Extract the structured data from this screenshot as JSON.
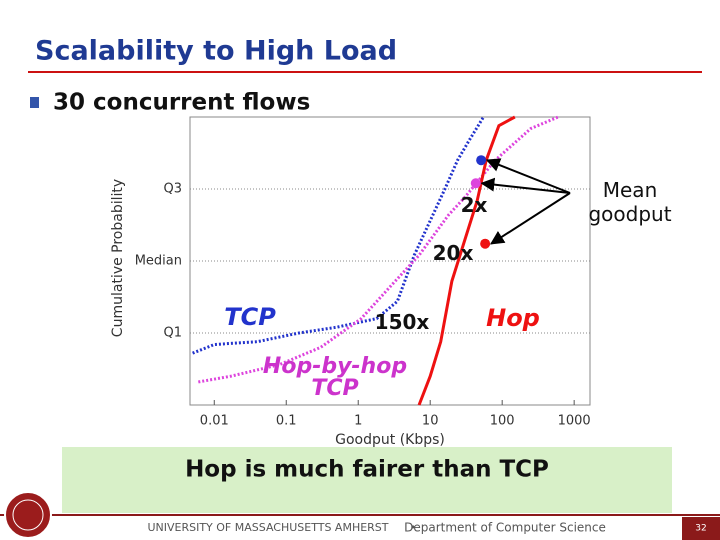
{
  "slide_title": "Scalability to High Load",
  "bullet": "30 concurrent flows",
  "conclusion": "Hop is much fairer than TCP",
  "footer": {
    "university": "UNIVERSITY OF MASSACHUSETTS AMHERST",
    "department": "Department of Computer Science"
  },
  "page_number": "32",
  "chart_data": {
    "type": "line",
    "xlabel": "Goodput (Kbps)",
    "ylabel": "Cumulative Probability",
    "xscale": "log",
    "xlim": [
      0.0046,
      1660
    ],
    "ylim": [
      0,
      1
    ],
    "xticks": [
      0.01,
      0.1,
      1,
      10,
      100,
      1000
    ],
    "yticks": [
      {
        "value": 0.25,
        "label": "Q1"
      },
      {
        "value": 0.5,
        "label": "Median"
      },
      {
        "value": 0.75,
        "label": "Q3"
      }
    ],
    "grid": true,
    "series": [
      {
        "name": "TCP",
        "color": "#2233cc",
        "style": "dotted",
        "x": [
          0.005,
          0.01,
          0.04,
          0.15,
          0.5,
          1.8,
          3.5,
          6,
          10,
          16,
          24,
          35,
          55
        ],
        "values": [
          0.18,
          0.21,
          0.22,
          0.25,
          0.27,
          0.3,
          0.36,
          0.52,
          0.64,
          0.75,
          0.85,
          0.92,
          1.0
        ],
        "mean_x": 51,
        "mean_y": 0.85
      },
      {
        "name": "Hop-by-hop TCP",
        "color": "#dd44dd",
        "style": "dotted",
        "x": [
          0.006,
          0.017,
          0.08,
          0.3,
          1.1,
          3,
          7,
          12,
          18,
          30,
          80,
          250,
          600
        ],
        "values": [
          0.08,
          0.1,
          0.14,
          0.2,
          0.3,
          0.42,
          0.52,
          0.6,
          0.66,
          0.72,
          0.85,
          0.96,
          1.0
        ],
        "mean_x": 43,
        "mean_y": 0.77
      },
      {
        "name": "Hop",
        "color": "#ee1111",
        "style": "solid",
        "x": [
          7,
          10,
          14,
          20,
          30,
          45,
          60,
          90,
          150
        ],
        "values": [
          0.0,
          0.1,
          0.22,
          0.43,
          0.57,
          0.71,
          0.85,
          0.97,
          1.0
        ],
        "mean_x": 58,
        "mean_y": 0.56
      }
    ],
    "annotations": [
      "2x",
      "20x",
      "150x",
      "Mean goodput"
    ]
  }
}
